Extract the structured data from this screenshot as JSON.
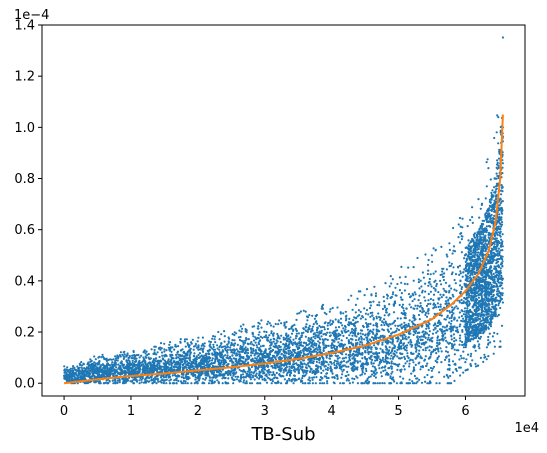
{
  "chart_data": {
    "type": "scatter",
    "title": "",
    "xlabel": "TB-Sub",
    "ylabel": "",
    "x_offset_label": "1e4",
    "y_offset_label": "1e−4",
    "xlim": [
      -3300,
      68900
    ],
    "ylim": [
      -0.05,
      1.4
    ],
    "x_ticks": [
      0,
      1,
      2,
      3,
      4,
      5,
      6
    ],
    "y_ticks": [
      0.0,
      0.2,
      0.4,
      0.6,
      0.8,
      1.0,
      1.2,
      1.4
    ],
    "x_tick_labels": [
      "0",
      "1",
      "2",
      "3",
      "4",
      "5",
      "6"
    ],
    "y_tick_labels": [
      "0.0",
      "0.2",
      "0.4",
      "0.6",
      "0.8",
      "1.0",
      "1.2",
      "1.4"
    ],
    "grid": false,
    "series": [
      {
        "kind": "scatter",
        "color": "#1f77b4",
        "description_points_x": [
          0,
          5000,
          10000,
          15000,
          20000,
          25000,
          30000,
          35000,
          40000,
          45000,
          50000,
          55000,
          58000,
          60000,
          62000,
          63500,
          64500,
          65500
        ],
        "band_low_y": [
          0.0,
          0.0,
          0.0,
          0.0,
          0.0,
          0.0,
          0.0,
          0.0,
          0.0,
          0.0,
          0.0,
          0.0,
          0.0,
          0.05,
          0.07,
          0.1,
          0.12,
          0.15
        ],
        "band_high_y": [
          0.07,
          0.11,
          0.13,
          0.16,
          0.19,
          0.22,
          0.25,
          0.28,
          0.32,
          0.37,
          0.45,
          0.55,
          0.62,
          0.69,
          0.78,
          0.9,
          1.05,
          1.36
        ]
      },
      {
        "kind": "line",
        "color": "#ff7f0e",
        "x": [
          0,
          5000,
          10000,
          15000,
          20000,
          25000,
          30000,
          35000,
          40000,
          45000,
          50000,
          55000,
          58000,
          60000,
          62000,
          63500,
          64500,
          65200,
          65600
        ],
        "y": [
          0.0,
          0.015,
          0.028,
          0.038,
          0.05,
          0.062,
          0.077,
          0.095,
          0.118,
          0.147,
          0.19,
          0.25,
          0.31,
          0.36,
          0.43,
          0.52,
          0.63,
          0.8,
          1.05
        ]
      }
    ]
  }
}
